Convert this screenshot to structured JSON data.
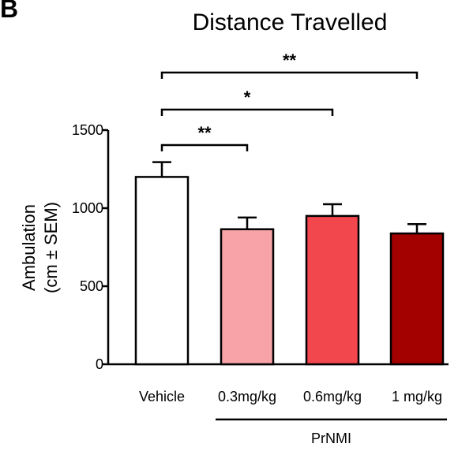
{
  "panel_label": "B",
  "chart_data": {
    "type": "bar",
    "title": "Distance Travelled",
    "ylabel_line1": "Ambulation",
    "ylabel_line2": "(cm ± SEM)",
    "xlabel": "",
    "ylim": [
      0,
      1500
    ],
    "yticks": [
      0,
      500,
      1000,
      1500
    ],
    "categories": [
      "Vehicle",
      "0.3mg/kg",
      "0.6mg/kg",
      "1 mg/kg"
    ],
    "values": [
      1200,
      865,
      950,
      838
    ],
    "errors": [
      95,
      75,
      75,
      60
    ],
    "colors": [
      "#ffffff",
      "#f7a3a8",
      "#f2474d",
      "#a30000"
    ],
    "group_label": "PrNMI",
    "group_members": [
      "0.3mg/kg",
      "0.6mg/kg",
      "1 mg/kg"
    ],
    "significance": [
      {
        "from": "Vehicle",
        "to": "0.3mg/kg",
        "label": "**"
      },
      {
        "from": "Vehicle",
        "to": "0.6mg/kg",
        "label": "*"
      },
      {
        "from": "Vehicle",
        "to": "1 mg/kg",
        "label": "**"
      }
    ]
  }
}
